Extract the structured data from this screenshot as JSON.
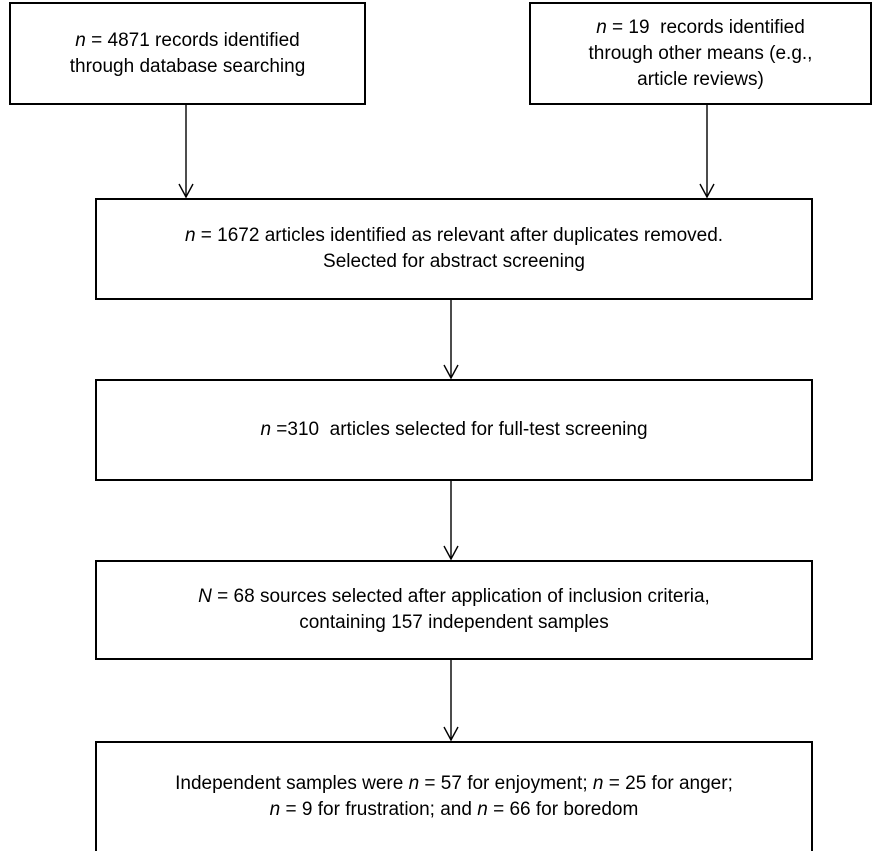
{
  "boxes": [
    {
      "id": "b1",
      "name": "box-database-records",
      "lines": [
        [
          {
            "t": "n",
            "i": true
          },
          {
            "t": " = 4871 records identified"
          }
        ],
        [
          {
            "t": "through database searching"
          }
        ]
      ]
    },
    {
      "id": "b2",
      "name": "box-other-records",
      "lines": [
        [
          {
            "t": "n",
            "i": true
          },
          {
            "t": " = 19  records identified"
          }
        ],
        [
          {
            "t": "through other means (e.g.,"
          }
        ],
        [
          {
            "t": "article reviews)"
          }
        ]
      ]
    },
    {
      "id": "b3",
      "name": "box-abstract-screening",
      "lines": [
        [
          {
            "t": "n",
            "i": true
          },
          {
            "t": " = 1672 articles identified as relevant after duplicates removed."
          }
        ],
        [
          {
            "t": "Selected for abstract screening"
          }
        ]
      ]
    },
    {
      "id": "b4",
      "name": "box-fulltext-screening",
      "lines": [
        [
          {
            "t": "n",
            "i": true
          },
          {
            "t": " =310  articles selected for full-test screening"
          }
        ]
      ]
    },
    {
      "id": "b5",
      "name": "box-inclusion-criteria",
      "lines": [
        [
          {
            "t": "N",
            "i": true
          },
          {
            "t": " = 68 sources selected after application of inclusion criteria,"
          }
        ],
        [
          {
            "t": "containing 157 independent samples"
          }
        ]
      ]
    },
    {
      "id": "b6",
      "name": "box-independent-samples",
      "lines": [
        [
          {
            "t": "Independent samples were "
          },
          {
            "t": "n",
            "i": true
          },
          {
            "t": " = 57 for enjoyment; "
          },
          {
            "t": "n",
            "i": true
          },
          {
            "t": " = 25 for anger;"
          }
        ],
        [
          {
            "t": "n",
            "i": true
          },
          {
            "t": " = 9 for frustration; and "
          },
          {
            "t": "n",
            "i": true
          },
          {
            "t": " = 66 for boredom"
          }
        ]
      ]
    }
  ],
  "connectors": [
    {
      "from": "b1",
      "to": "b3"
    },
    {
      "from": "b2",
      "to": "b3"
    },
    {
      "from": "b3",
      "to": "b4"
    },
    {
      "from": "b4",
      "to": "b5"
    },
    {
      "from": "b5",
      "to": "b6"
    }
  ]
}
